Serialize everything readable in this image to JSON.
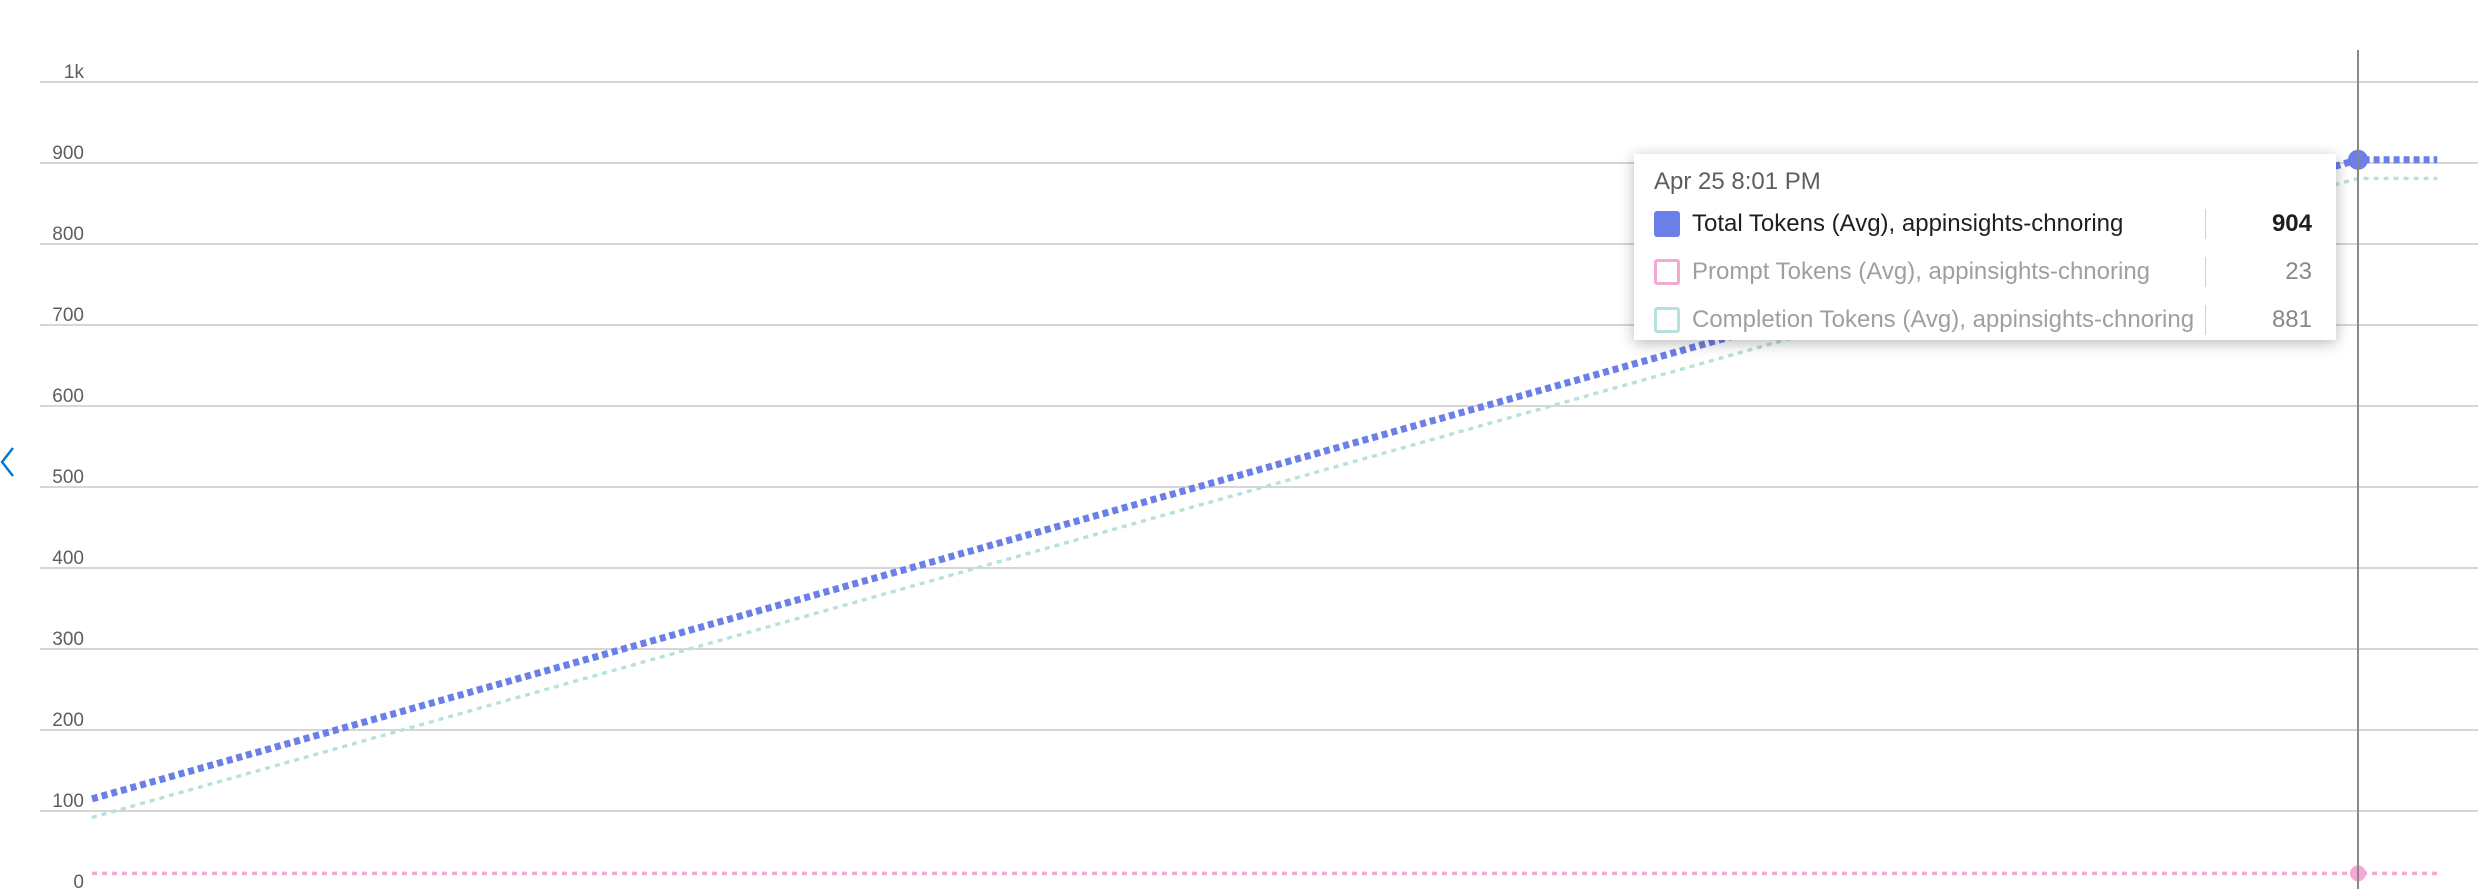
{
  "chart_data": {
    "type": "line",
    "title": "",
    "xlabel": "",
    "ylabel": "",
    "ylim": [
      0,
      1000
    ],
    "y_ticks": [
      {
        "value": 0,
        "label": "0"
      },
      {
        "value": 100,
        "label": "100"
      },
      {
        "value": 200,
        "label": "200"
      },
      {
        "value": 300,
        "label": "300"
      },
      {
        "value": 400,
        "label": "400"
      },
      {
        "value": 500,
        "label": "500"
      },
      {
        "value": 600,
        "label": "600"
      },
      {
        "value": 700,
        "label": "700"
      },
      {
        "value": 800,
        "label": "800"
      },
      {
        "value": 900,
        "label": "900"
      },
      {
        "value": 1000,
        "label": "1k"
      }
    ],
    "grid": true,
    "x_range": [
      0,
      1.035
    ],
    "cursor_x": 1.0,
    "series": [
      {
        "name": "Total Tokens (Avg), appinsights-chnoring",
        "color": "#6b7fe8",
        "style": "dotted",
        "emphasis": "active",
        "points": [
          [
            0,
            115
          ],
          [
            1.0,
            904
          ],
          [
            1.035,
            904
          ]
        ]
      },
      {
        "name": "Prompt Tokens (Avg), appinsights-chnoring",
        "color": "#f4a9d4",
        "style": "dotted",
        "emphasis": "inactive",
        "points": [
          [
            0,
            23
          ],
          [
            1.0,
            23
          ],
          [
            1.035,
            23
          ]
        ]
      },
      {
        "name": "Completion Tokens (Avg), appinsights-chnoring",
        "color": "#b7e1dd",
        "style": "dotted",
        "emphasis": "inactive",
        "points": [
          [
            0,
            92
          ],
          [
            1.0,
            881
          ],
          [
            1.035,
            881
          ]
        ]
      }
    ]
  },
  "tooltip": {
    "title": "Apr 25 8:01 PM",
    "rows": [
      {
        "label": "Total Tokens (Avg), appinsights-chnoring",
        "value": "904",
        "color": "#6b7fe8",
        "state": "active"
      },
      {
        "label": "Prompt Tokens (Avg), appinsights-chnoring",
        "value": "23",
        "color": "#f4a9d4",
        "state": "inactive"
      },
      {
        "label": "Completion Tokens (Avg), appinsights-chnoring",
        "value": "881",
        "color": "#b7e1dd",
        "state": "inactive"
      }
    ]
  },
  "icons": {
    "collapse": "chevron-left-icon",
    "collapse_color": "#0078d4"
  }
}
